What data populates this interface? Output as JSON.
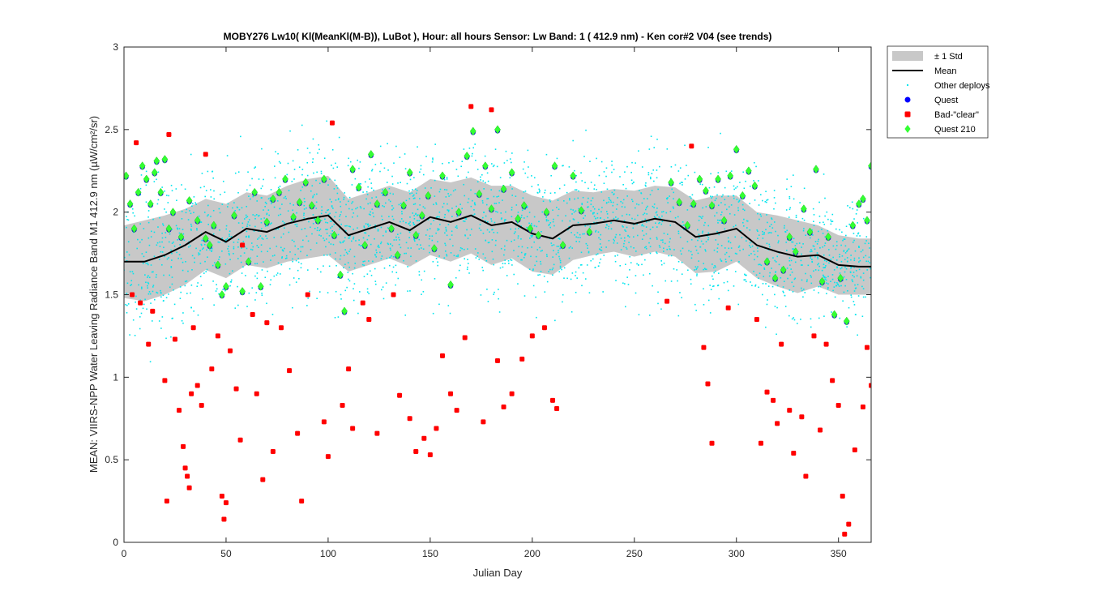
{
  "chart_data": {
    "type": "scatter",
    "title": "MOBY276   Lw10( Kl(MeanKl(M-B)), LuBot ),   Hour: all hours  Sensor: Lw Band: 1 ( 412.9 nm)  - Ken cor#2 V04 (see trends)",
    "xlabel": "Julian Day",
    "ylabel": "MEAN: VIIRS-NPP Water Leaving Radiance Band M1 412.9 nm (µW/cm²/sr)",
    "xlim": [
      0,
      366
    ],
    "ylim": [
      0,
      3
    ],
    "x_ticks": [
      "0",
      "50",
      "100",
      "150",
      "200",
      "250",
      "300",
      "350"
    ],
    "y_ticks": [
      "0",
      "0.5",
      "1",
      "1.5",
      "2",
      "2.5",
      "3"
    ],
    "legend_position": "outside-top-right",
    "legend": [
      {
        "label": "± 1 Std",
        "color": "#c8c8c8",
        "kind": "band"
      },
      {
        "label": "Mean",
        "color": "#000000",
        "kind": "line"
      },
      {
        "label": "Other deploys",
        "color": "#00e5ee",
        "kind": "dot"
      },
      {
        "label": "Quest",
        "color": "#0000ff",
        "kind": "circle"
      },
      {
        "label": "Bad-\"clear\"",
        "color": "#ff0000",
        "kind": "square"
      },
      {
        "label": "Quest 210",
        "color": "#33ff33",
        "kind": "diamond"
      }
    ],
    "mean": {
      "x": [
        0,
        10,
        20,
        30,
        40,
        50,
        60,
        70,
        80,
        90,
        100,
        110,
        120,
        130,
        140,
        150,
        160,
        170,
        180,
        190,
        200,
        210,
        220,
        230,
        240,
        250,
        260,
        270,
        280,
        290,
        300,
        310,
        320,
        330,
        340,
        350,
        360,
        366
      ],
      "y": [
        1.7,
        1.7,
        1.74,
        1.8,
        1.88,
        1.82,
        1.9,
        1.88,
        1.93,
        1.96,
        1.98,
        1.86,
        1.9,
        1.94,
        1.89,
        1.97,
        1.94,
        1.98,
        1.92,
        1.94,
        1.87,
        1.84,
        1.92,
        1.93,
        1.95,
        1.93,
        1.96,
        1.94,
        1.85,
        1.87,
        1.9,
        1.8,
        1.76,
        1.73,
        1.74,
        1.68,
        1.67,
        1.67
      ]
    },
    "std_band": {
      "x": [
        0,
        10,
        20,
        30,
        40,
        50,
        60,
        70,
        80,
        90,
        100,
        110,
        120,
        130,
        140,
        150,
        160,
        170,
        180,
        190,
        200,
        210,
        220,
        230,
        240,
        250,
        260,
        270,
        280,
        290,
        300,
        310,
        320,
        330,
        340,
        350,
        360,
        366
      ],
      "upper": [
        1.92,
        1.95,
        1.98,
        2.02,
        2.08,
        2.05,
        2.12,
        2.1,
        2.16,
        2.2,
        2.22,
        2.08,
        2.12,
        2.16,
        2.12,
        2.2,
        2.18,
        2.21,
        2.16,
        2.16,
        2.1,
        2.07,
        2.13,
        2.12,
        2.14,
        2.13,
        2.16,
        2.15,
        2.07,
        2.1,
        2.1,
        2.0,
        1.98,
        1.95,
        1.92,
        1.86,
        1.84,
        1.84
      ],
      "lower": [
        1.48,
        1.46,
        1.5,
        1.56,
        1.65,
        1.6,
        1.68,
        1.66,
        1.7,
        1.72,
        1.74,
        1.64,
        1.68,
        1.72,
        1.67,
        1.74,
        1.7,
        1.75,
        1.68,
        1.72,
        1.64,
        1.62,
        1.71,
        1.74,
        1.76,
        1.73,
        1.76,
        1.73,
        1.63,
        1.64,
        1.7,
        1.6,
        1.55,
        1.51,
        1.55,
        1.5,
        1.5,
        1.5
      ]
    },
    "series": [
      {
        "name": "Bad-\"clear\"",
        "x": [
          4,
          6,
          8,
          12,
          14,
          20,
          21,
          22,
          25,
          27,
          29,
          30,
          31,
          32,
          33,
          34,
          36,
          38,
          40,
          43,
          46,
          48,
          49,
          50,
          52,
          55,
          57,
          58,
          63,
          65,
          68,
          70,
          73,
          77,
          81,
          85,
          87,
          90,
          98,
          100,
          102,
          107,
          110,
          112,
          117,
          120,
          124,
          132,
          135,
          140,
          143,
          147,
          150,
          153,
          156,
          160,
          163,
          167,
          170,
          176,
          180,
          183,
          186,
          190,
          195,
          200,
          206,
          210,
          212,
          266,
          278,
          284,
          286,
          288,
          296,
          310,
          312,
          315,
          318,
          320,
          322,
          326,
          328,
          332,
          334,
          338,
          341,
          344,
          347,
          350,
          352,
          353,
          355,
          358,
          362,
          364,
          366
        ],
        "y": [
          1.5,
          2.42,
          1.45,
          1.2,
          1.4,
          0.98,
          0.25,
          2.47,
          1.23,
          0.8,
          0.58,
          0.45,
          0.4,
          0.33,
          0.9,
          1.3,
          0.95,
          0.83,
          2.35,
          1.05,
          1.25,
          0.28,
          0.14,
          0.24,
          1.16,
          0.93,
          0.62,
          1.8,
          1.38,
          0.9,
          0.38,
          1.33,
          0.55,
          1.3,
          1.04,
          0.66,
          0.25,
          1.5,
          0.73,
          0.52,
          2.54,
          0.83,
          1.05,
          0.69,
          1.45,
          1.35,
          0.66,
          1.5,
          0.89,
          0.75,
          0.55,
          0.63,
          0.53,
          0.69,
          1.13,
          0.9,
          0.8,
          1.24,
          2.64,
          0.73,
          2.62,
          1.1,
          0.82,
          0.9,
          1.11,
          1.25,
          1.3,
          0.86,
          0.81,
          1.46,
          2.4,
          1.18,
          0.96,
          0.6,
          1.42,
          1.35,
          0.6,
          0.91,
          0.86,
          0.72,
          1.2,
          0.8,
          0.54,
          0.76,
          0.4,
          1.25,
          0.68,
          1.2,
          0.98,
          0.83,
          0.28,
          0.05,
          0.11,
          0.56,
          0.82,
          1.18,
          0.95
        ]
      },
      {
        "name": "Quest 210",
        "x": [
          1,
          3,
          5,
          7,
          9,
          11,
          13,
          15,
          16,
          18,
          20,
          22,
          24,
          28,
          32,
          36,
          40,
          42,
          44,
          46,
          48,
          50,
          54,
          58,
          61,
          64,
          67,
          70,
          73,
          76,
          79,
          83,
          86,
          89,
          92,
          95,
          98,
          103,
          106,
          108,
          112,
          115,
          118,
          121,
          124,
          128,
          131,
          134,
          137,
          140,
          143,
          146,
          149,
          152,
          156,
          160,
          164,
          168,
          171,
          174,
          177,
          180,
          183,
          186,
          190,
          193,
          196,
          199,
          203,
          207,
          211,
          215,
          220,
          224,
          228,
          268,
          272,
          276,
          279,
          282,
          285,
          288,
          291,
          294,
          297,
          300,
          303,
          306,
          309,
          315,
          319,
          323,
          326,
          329,
          333,
          336,
          339,
          342,
          345,
          348,
          351,
          354,
          357,
          360,
          362,
          364,
          366
        ],
        "y": [
          2.22,
          2.05,
          1.9,
          2.12,
          2.28,
          2.2,
          2.05,
          2.24,
          2.31,
          2.12,
          2.32,
          1.9,
          2.0,
          1.85,
          2.07,
          1.95,
          1.84,
          1.8,
          1.92,
          1.68,
          1.5,
          1.55,
          1.98,
          1.52,
          1.7,
          2.12,
          1.55,
          1.94,
          2.08,
          2.12,
          2.2,
          1.97,
          2.06,
          2.18,
          2.04,
          1.95,
          2.2,
          1.86,
          1.62,
          1.4,
          2.26,
          2.15,
          1.8,
          2.35,
          2.05,
          2.12,
          1.9,
          1.74,
          2.04,
          2.24,
          1.86,
          1.98,
          2.1,
          1.78,
          2.22,
          1.56,
          2.0,
          2.34,
          2.49,
          2.11,
          2.28,
          2.02,
          2.5,
          2.14,
          2.24,
          1.96,
          2.04,
          1.9,
          1.86,
          2.0,
          2.28,
          1.8,
          2.22,
          2.01,
          1.88,
          2.18,
          2.06,
          1.92,
          2.05,
          2.2,
          2.13,
          2.04,
          2.2,
          1.95,
          2.22,
          2.38,
          2.1,
          2.25,
          2.16,
          1.7,
          1.6,
          1.65,
          1.85,
          1.76,
          2.02,
          1.88,
          2.26,
          1.58,
          1.85,
          1.38,
          1.6,
          1.34,
          1.92,
          2.05,
          2.08,
          1.95,
          2.28
        ]
      }
    ]
  }
}
